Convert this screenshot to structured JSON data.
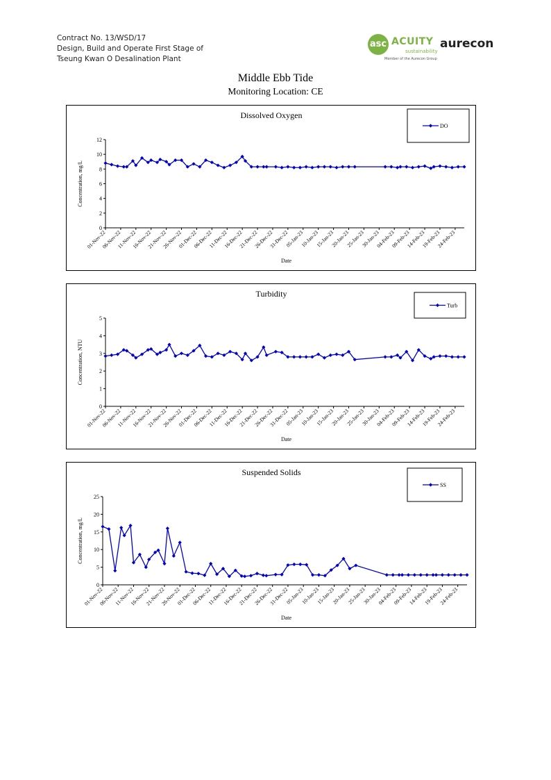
{
  "header": {
    "contract": "Contract No. 13/WSD/17",
    "line2": "Design, Build and Operate First Stage of",
    "line3": "Tseung Kwan O Desalination Plant"
  },
  "logos": {
    "acuity_mark": "asc",
    "acuity_name": "ACUITY",
    "acuity_sub": "sustainability",
    "acuity_member": "Member of the Aurecon Group",
    "aurecon": "aurecon",
    "acuity_color": "#7cb342"
  },
  "doc": {
    "title": "Middle Ebb Tide",
    "subtitle": "Monitoring Location: CE"
  },
  "x_ticks": [
    "01-Nov-22",
    "06-Nov-22",
    "11-Nov-22",
    "16-Nov-22",
    "21-Nov-22",
    "26-Nov-22",
    "01-Dec-22",
    "06-Dec-22",
    "11-Dec-22",
    "16-Dec-22",
    "21-Dec-22",
    "26-Dec-22",
    "31-Dec-22",
    "05-Jan-23",
    "10-Jan-23",
    "15-Jan-23",
    "20-Jan-23",
    "25-Jan-23",
    "30-Jan-23",
    "04-Feb-23",
    "09-Feb-23",
    "14-Feb-23",
    "19-Feb-23",
    "24-Feb-23"
  ],
  "chart_data": [
    {
      "type": "line",
      "title": "Dissolved Oxygen",
      "xlabel": "Date",
      "ylabel": "Concentration, mg/L",
      "ylim": [
        0,
        12
      ],
      "yticks": [
        0,
        2,
        4,
        6,
        8,
        10,
        12
      ],
      "legend_position": "top-right",
      "series": [
        {
          "name": "DO",
          "color": "#0000cc",
          "x": [
            "2022-11-01",
            "2022-11-03",
            "2022-11-05",
            "2022-11-07",
            "2022-11-08",
            "2022-11-10",
            "2022-11-11",
            "2022-11-13",
            "2022-11-15",
            "2022-11-16",
            "2022-11-18",
            "2022-11-19",
            "2022-11-21",
            "2022-11-22",
            "2022-11-24",
            "2022-11-26",
            "2022-11-28",
            "2022-11-30",
            "2022-12-02",
            "2022-12-04",
            "2022-12-06",
            "2022-12-08",
            "2022-12-10",
            "2022-12-12",
            "2022-12-14",
            "2022-12-16",
            "2022-12-17",
            "2022-12-19",
            "2022-12-21",
            "2022-12-23",
            "2022-12-24",
            "2022-12-27",
            "2022-12-29",
            "2022-12-31",
            "2023-01-02",
            "2023-01-04",
            "2023-01-06",
            "2023-01-08",
            "2023-01-10",
            "2023-01-12",
            "2023-01-14",
            "2023-01-16",
            "2023-01-18",
            "2023-01-20",
            "2023-01-22",
            "2023-02-01",
            "2023-02-03",
            "2023-02-05",
            "2023-02-06",
            "2023-02-08",
            "2023-02-10",
            "2023-02-12",
            "2023-02-14",
            "2023-02-16",
            "2023-02-17",
            "2023-02-19",
            "2023-02-21",
            "2023-02-23",
            "2023-02-25",
            "2023-02-27"
          ],
          "values": [
            8.8,
            8.6,
            8.4,
            8.3,
            8.3,
            9.1,
            8.5,
            9.5,
            8.9,
            9.2,
            8.9,
            9.3,
            9.0,
            8.6,
            9.2,
            9.2,
            8.3,
            8.7,
            8.3,
            9.2,
            8.9,
            8.5,
            8.2,
            8.5,
            8.9,
            9.7,
            9.1,
            8.3,
            8.3,
            8.3,
            8.3,
            8.3,
            8.2,
            8.3,
            8.2,
            8.2,
            8.3,
            8.2,
            8.3,
            8.3,
            8.3,
            8.2,
            8.3,
            8.3,
            8.3,
            8.3,
            8.3,
            8.2,
            8.3,
            8.3,
            8.2,
            8.3,
            8.4,
            8.1,
            8.3,
            8.4,
            8.3,
            8.2,
            8.3,
            8.3
          ]
        }
      ]
    },
    {
      "type": "line",
      "title": "Turbidity",
      "xlabel": "Date",
      "ylabel": "Concentration, NTU",
      "ylim": [
        0,
        5
      ],
      "yticks": [
        0,
        1,
        2,
        3,
        4,
        5
      ],
      "legend_position": "top-right",
      "series": [
        {
          "name": "Turb",
          "color": "#0000cc",
          "x": [
            "2022-11-01",
            "2022-11-03",
            "2022-11-05",
            "2022-11-07",
            "2022-11-08",
            "2022-11-10",
            "2022-11-11",
            "2022-11-13",
            "2022-11-15",
            "2022-11-16",
            "2022-11-18",
            "2022-11-19",
            "2022-11-21",
            "2022-11-22",
            "2022-11-24",
            "2022-11-26",
            "2022-11-28",
            "2022-11-30",
            "2022-12-02",
            "2022-12-04",
            "2022-12-06",
            "2022-12-08",
            "2022-12-10",
            "2022-12-12",
            "2022-12-14",
            "2022-12-16",
            "2022-12-17",
            "2022-12-19",
            "2022-12-21",
            "2022-12-23",
            "2022-12-24",
            "2022-12-27",
            "2022-12-29",
            "2022-12-31",
            "2023-01-02",
            "2023-01-04",
            "2023-01-06",
            "2023-01-08",
            "2023-01-10",
            "2023-01-12",
            "2023-01-14",
            "2023-01-16",
            "2023-01-18",
            "2023-01-20",
            "2023-01-22",
            "2023-02-01",
            "2023-02-03",
            "2023-02-05",
            "2023-02-06",
            "2023-02-08",
            "2023-02-10",
            "2023-02-12",
            "2023-02-14",
            "2023-02-16",
            "2023-02-17",
            "2023-02-19",
            "2023-02-21",
            "2023-02-23",
            "2023-02-25",
            "2023-02-27"
          ],
          "values": [
            2.85,
            2.9,
            2.95,
            3.2,
            3.15,
            2.9,
            2.75,
            2.95,
            3.2,
            3.25,
            2.95,
            3.05,
            3.2,
            3.5,
            2.85,
            3.0,
            2.9,
            3.15,
            3.45,
            2.85,
            2.8,
            3.0,
            2.9,
            3.1,
            3.0,
            2.65,
            3.0,
            2.6,
            2.8,
            3.35,
            2.9,
            3.1,
            3.05,
            2.8,
            2.8,
            2.8,
            2.8,
            2.8,
            2.95,
            2.75,
            2.9,
            2.95,
            2.9,
            3.1,
            2.65,
            2.8,
            2.8,
            2.9,
            2.75,
            3.1,
            2.6,
            3.2,
            2.85,
            2.7,
            2.8,
            2.85,
            2.85,
            2.8,
            2.8,
            2.8
          ]
        }
      ]
    },
    {
      "type": "line",
      "title": "Suspended Solids",
      "xlabel": "Date",
      "ylabel": "Concentration, mg/L",
      "ylim": [
        0,
        25
      ],
      "yticks": [
        0,
        5,
        10,
        15,
        20,
        25
      ],
      "legend_position": "top-right",
      "series": [
        {
          "name": "SS",
          "color": "#0000cc",
          "x": [
            "2022-11-01",
            "2022-11-03",
            "2022-11-05",
            "2022-11-07",
            "2022-11-08",
            "2022-11-10",
            "2022-11-11",
            "2022-11-13",
            "2022-11-15",
            "2022-11-16",
            "2022-11-18",
            "2022-11-19",
            "2022-11-21",
            "2022-11-22",
            "2022-11-24",
            "2022-11-26",
            "2022-11-28",
            "2022-11-30",
            "2022-12-02",
            "2022-12-04",
            "2022-12-06",
            "2022-12-08",
            "2022-12-10",
            "2022-12-12",
            "2022-12-14",
            "2022-12-16",
            "2022-12-17",
            "2022-12-19",
            "2022-12-21",
            "2022-12-23",
            "2022-12-24",
            "2022-12-27",
            "2022-12-29",
            "2022-12-31",
            "2023-01-02",
            "2023-01-04",
            "2023-01-06",
            "2023-01-08",
            "2023-01-10",
            "2023-01-12",
            "2023-01-14",
            "2023-01-16",
            "2023-01-18",
            "2023-01-20",
            "2023-01-22",
            "2023-02-01",
            "2023-02-03",
            "2023-02-05",
            "2023-02-06",
            "2023-02-08",
            "2023-02-10",
            "2023-02-12",
            "2023-02-14",
            "2023-02-16",
            "2023-02-17",
            "2023-02-19",
            "2023-02-21",
            "2023-02-23",
            "2023-02-25",
            "2023-02-27"
          ],
          "values": [
            16.5,
            15.8,
            4.0,
            16.2,
            14.0,
            16.8,
            6.3,
            8.6,
            5.0,
            7.2,
            9.2,
            9.8,
            6.0,
            16.0,
            8.2,
            12.0,
            3.7,
            3.3,
            3.2,
            2.7,
            6.0,
            3.0,
            4.6,
            2.4,
            4.1,
            2.5,
            2.4,
            2.6,
            3.2,
            2.7,
            2.6,
            2.9,
            2.9,
            5.6,
            5.8,
            5.8,
            5.7,
            2.8,
            2.8,
            2.6,
            4.2,
            5.5,
            7.4,
            4.6,
            5.5,
            2.8,
            2.8,
            2.8,
            2.8,
            2.8,
            2.8,
            2.8,
            2.8,
            2.8,
            2.8,
            2.8,
            2.8,
            2.8,
            2.8,
            2.8
          ]
        }
      ]
    }
  ]
}
